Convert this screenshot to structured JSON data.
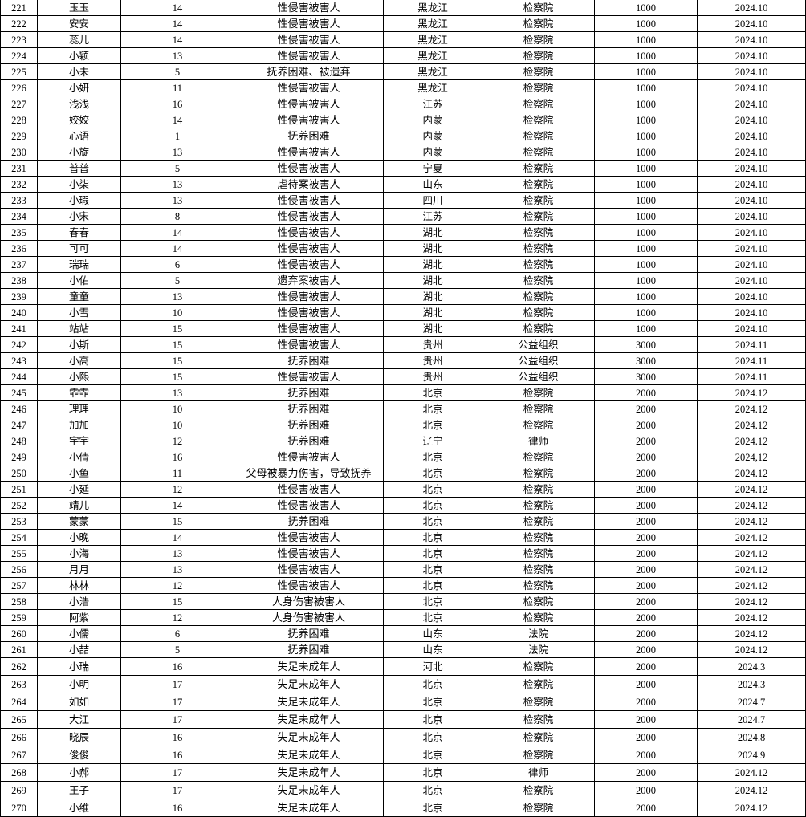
{
  "rows": [
    [
      "221",
      "玉玉",
      "14",
      "性侵害被害人",
      "黑龙江",
      "检察院",
      "1000",
      "2024.10"
    ],
    [
      "222",
      "安安",
      "14",
      "性侵害被害人",
      "黑龙江",
      "检察院",
      "1000",
      "2024.10"
    ],
    [
      "223",
      "蕊儿",
      "14",
      "性侵害被害人",
      "黑龙江",
      "检察院",
      "1000",
      "2024.10"
    ],
    [
      "224",
      "小颖",
      "13",
      "性侵害被害人",
      "黑龙江",
      "检察院",
      "1000",
      "2024.10"
    ],
    [
      "225",
      "小未",
      "5",
      "抚养困难、被遗弃",
      "黑龙江",
      "检察院",
      "1000",
      "2024.10"
    ],
    [
      "226",
      "小妍",
      "11",
      "性侵害被害人",
      "黑龙江",
      "检察院",
      "1000",
      "2024.10"
    ],
    [
      "227",
      "浅浅",
      "16",
      "性侵害被害人",
      "江苏",
      "检察院",
      "1000",
      "2024.10"
    ],
    [
      "228",
      "姣姣",
      "14",
      "性侵害被害人",
      "内蒙",
      "检察院",
      "1000",
      "2024.10"
    ],
    [
      "229",
      "心语",
      "1",
      "抚养困难",
      "内蒙",
      "检察院",
      "1000",
      "2024.10"
    ],
    [
      "230",
      "小旋",
      "13",
      "性侵害被害人",
      "内蒙",
      "检察院",
      "1000",
      "2024.10"
    ],
    [
      "231",
      "普普",
      "5",
      "性侵害被害人",
      "宁夏",
      "检察院",
      "1000",
      "2024.10"
    ],
    [
      "232",
      "小柒",
      "13",
      "虐待案被害人",
      "山东",
      "检察院",
      "1000",
      "2024.10"
    ],
    [
      "233",
      "小瑕",
      "13",
      "性侵害被害人",
      "四川",
      "检察院",
      "1000",
      "2024.10"
    ],
    [
      "234",
      "小宋",
      "8",
      "性侵害被害人",
      "江苏",
      "检察院",
      "1000",
      "2024.10"
    ],
    [
      "235",
      "春春",
      "14",
      "性侵害被害人",
      "湖北",
      "检察院",
      "1000",
      "2024.10"
    ],
    [
      "236",
      "可可",
      "14",
      "性侵害被害人",
      "湖北",
      "检察院",
      "1000",
      "2024.10"
    ],
    [
      "237",
      "瑞瑞",
      "6",
      "性侵害被害人",
      "湖北",
      "检察院",
      "1000",
      "2024.10"
    ],
    [
      "238",
      "小佑",
      "5",
      "遗弃案被害人",
      "湖北",
      "检察院",
      "1000",
      "2024.10"
    ],
    [
      "239",
      "童童",
      "13",
      "性侵害被害人",
      "湖北",
      "检察院",
      "1000",
      "2024.10"
    ],
    [
      "240",
      "小雪",
      "10",
      "性侵害被害人",
      "湖北",
      "检察院",
      "1000",
      "2024.10"
    ],
    [
      "241",
      "站站",
      "15",
      "性侵害被害人",
      "湖北",
      "检察院",
      "1000",
      "2024.10"
    ],
    [
      "242",
      "小斯",
      "15",
      "性侵害被害人",
      "贵州",
      "公益组织",
      "3000",
      "2024.11"
    ],
    [
      "243",
      "小高",
      "15",
      "抚养困难",
      "贵州",
      "公益组织",
      "3000",
      "2024.11"
    ],
    [
      "244",
      "小熙",
      "15",
      "性侵害被害人",
      "贵州",
      "公益组织",
      "3000",
      "2024.11"
    ],
    [
      "245",
      "霏霏",
      "13",
      "抚养困难",
      "北京",
      "检察院",
      "2000",
      "2024.12"
    ],
    [
      "246",
      "理理",
      "10",
      "抚养困难",
      "北京",
      "检察院",
      "2000",
      "2024.12"
    ],
    [
      "247",
      "加加",
      "10",
      "抚养困难",
      "北京",
      "检察院",
      "2000",
      "2024.12"
    ],
    [
      "248",
      "宇宇",
      "12",
      "抚养困难",
      "辽宁",
      "律师",
      "2000",
      "2024.12"
    ],
    [
      "249",
      "小倩",
      "16",
      "性侵害被害人",
      "北京",
      "检察院",
      "2000",
      "2024,12"
    ],
    [
      "250",
      "小鱼",
      "11",
      "父母被暴力伤害，导致抚养",
      "北京",
      "检察院",
      "2000",
      "2024.12"
    ],
    [
      "251",
      "小延",
      "12",
      "性侵害被害人",
      "北京",
      "检察院",
      "2000",
      "2024.12"
    ],
    [
      "252",
      "靖儿",
      "14",
      "性侵害被害人",
      "北京",
      "检察院",
      "2000",
      "2024.12"
    ],
    [
      "253",
      "蒙蒙",
      "15",
      "抚养困难",
      "北京",
      "检察院",
      "2000",
      "2024.12"
    ],
    [
      "254",
      "小晚",
      "14",
      "性侵害被害人",
      "北京",
      "检察院",
      "2000",
      "2024.12"
    ],
    [
      "255",
      "小海",
      "13",
      "性侵害被害人",
      "北京",
      "检察院",
      "2000",
      "2024.12"
    ],
    [
      "256",
      "月月",
      "13",
      "性侵害被害人",
      "北京",
      "检察院",
      "2000",
      "2024.12"
    ],
    [
      "257",
      "林林",
      "12",
      "性侵害被害人",
      "北京",
      "检察院",
      "2000",
      "2024.12"
    ],
    [
      "258",
      "小浩",
      "15",
      "人身伤害被害人",
      "北京",
      "检察院",
      "2000",
      "2024.12"
    ],
    [
      "259",
      "阿紫",
      "12",
      "人身伤害被害人",
      "北京",
      "检察院",
      "2000",
      "2024.12"
    ],
    [
      "260",
      "小儒",
      "6",
      "抚养困难",
      "山东",
      "法院",
      "2000",
      "2024.12"
    ],
    [
      "261",
      "小喆",
      "5",
      "抚养困难",
      "山东",
      "法院",
      "2000",
      "2024.12"
    ],
    [
      "262",
      "小瑞",
      "16",
      "失足未成年人",
      "河北",
      "检察院",
      "2000",
      "2024.3"
    ],
    [
      "263",
      "小明",
      "17",
      "失足未成年人",
      "北京",
      "检察院",
      "2000",
      "2024.3"
    ],
    [
      "264",
      "如如",
      "17",
      "失足未成年人",
      "北京",
      "检察院",
      "2000",
      "2024.7"
    ],
    [
      "265",
      "大江",
      "17",
      "失足未成年人",
      "北京",
      "检察院",
      "2000",
      "2024.7"
    ],
    [
      "266",
      "晓辰",
      "16",
      "失足未成年人",
      "北京",
      "检察院",
      "2000",
      "2024.8"
    ],
    [
      "267",
      "俊俊",
      "16",
      "失足未成年人",
      "北京",
      "检察院",
      "2000",
      "2024.9"
    ],
    [
      "268",
      "小郝",
      "17",
      "失足未成年人",
      "北京",
      "律师",
      "2000",
      "2024.12"
    ],
    [
      "269",
      "王子",
      "17",
      "失足未成年人",
      "北京",
      "检察院",
      "2000",
      "2024.12"
    ],
    [
      "270",
      "小维",
      "16",
      "失足未成年人",
      "北京",
      "检察院",
      "2000",
      "2024.12"
    ]
  ]
}
